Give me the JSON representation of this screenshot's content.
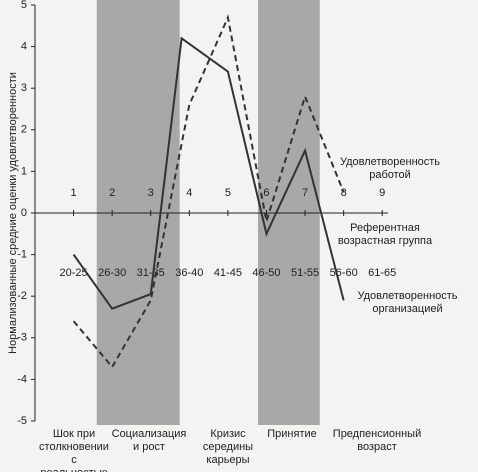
{
  "chart_data": {
    "type": "line",
    "y_label": "Нормализованные средние оценки удовлетворенности",
    "x_label": "Референтная возрастная группа",
    "xlim": [
      0,
      9.15
    ],
    "xticks": [
      1,
      2,
      3,
      4,
      5,
      6,
      7,
      8,
      9
    ],
    "ylim": [
      -5,
      5
    ],
    "yticks": [
      -5,
      -4,
      -3,
      -2,
      -1,
      0,
      1,
      2,
      3,
      4,
      5
    ],
    "age_groups": [
      "20-25",
      "26-30",
      "31-35",
      "36-40",
      "41-45",
      "46-50",
      "51-55",
      "56-60",
      "61-65"
    ],
    "bands": [
      [
        1.6,
        3.75
      ],
      [
        5.78,
        7.38
      ]
    ],
    "band_color": "#a8a8a8",
    "stages": [
      "Шок при столкновении с реальностью",
      "Социализация и рост",
      "Кризис середины карьеры",
      "Принятие",
      "Предпенсионный возраст"
    ],
    "series": [
      {
        "name": "Удовлетворенность организацией",
        "color": "#333333",
        "dash": false,
        "x": [
          1,
          2,
          3,
          3.8,
          5,
          6,
          7,
          8
        ],
        "values": [
          -1.0,
          -2.3,
          -1.95,
          4.2,
          3.4,
          -0.5,
          1.5,
          -2.1
        ]
      },
      {
        "name": "Удовлетворенность работой",
        "color": "#333333",
        "dash": true,
        "x": [
          1,
          2,
          3,
          4,
          5,
          6,
          7,
          8
        ],
        "values": [
          -2.6,
          -3.7,
          -2.1,
          2.6,
          4.7,
          -0.2,
          2.8,
          0.5
        ]
      }
    ]
  }
}
